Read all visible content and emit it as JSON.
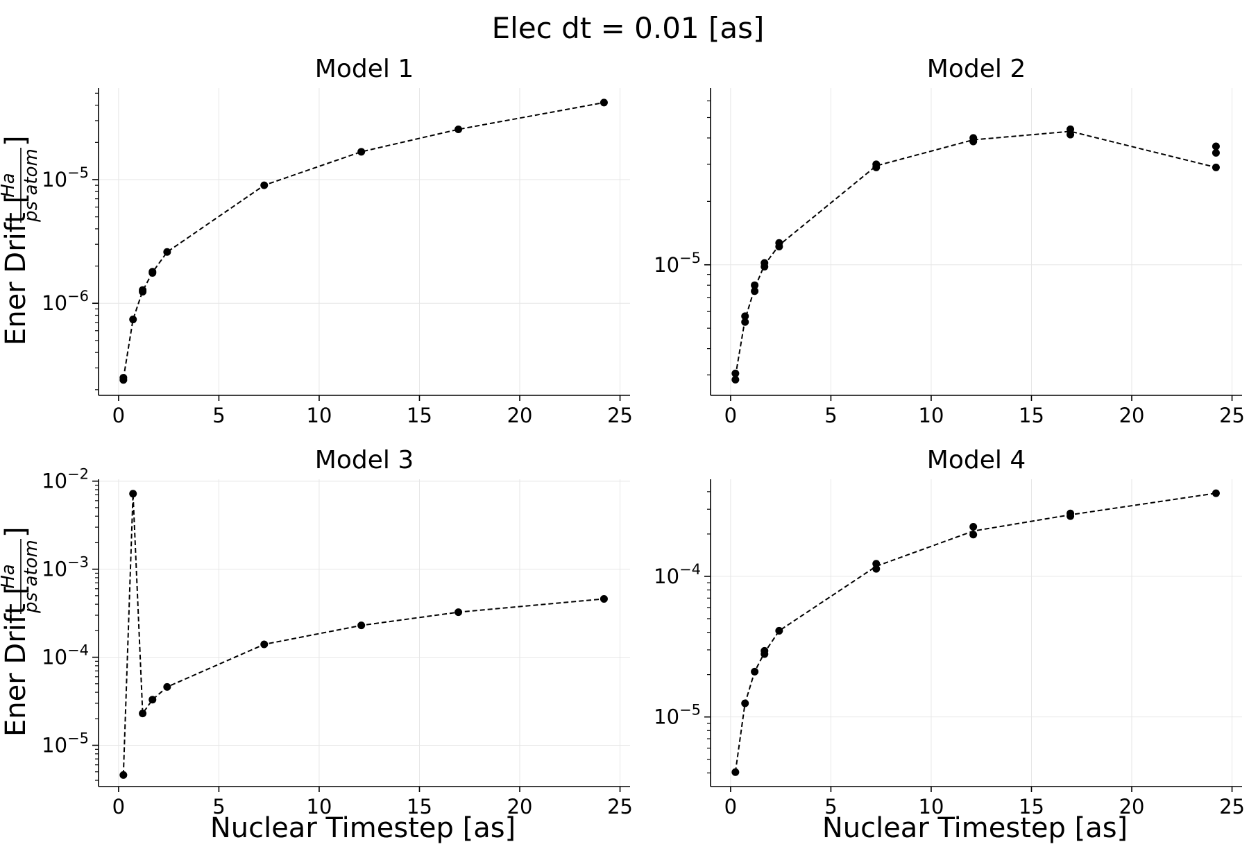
{
  "figure_title": "Elec dt = 0.01 [as]",
  "shared_xlabel": "Nuclear Timestep [as]",
  "shared_ylabel": {
    "prefix": "Ener Drift [",
    "numerator": "Ha",
    "denominator": "ps atom",
    "suffix": "]"
  },
  "colors": {
    "marker": "#000000",
    "line": "#000000",
    "grid": "#e6e6e6",
    "axis": "#000000"
  },
  "chart_data": [
    {
      "type": "line",
      "title": "Model 1",
      "xlabel": "",
      "ylabel": "Ener Drift [Ha / (ps atom)]",
      "yscale": "log",
      "xlim": [
        -1,
        25.5
      ],
      "ylim": [
        1.8e-07,
        5.5e-05
      ],
      "xticks": [
        0,
        5,
        10,
        15,
        20,
        25
      ],
      "xtick_labels": [
        "0",
        "5",
        "10",
        "15",
        "20",
        "25"
      ],
      "yticks": [
        1e-06,
        1e-05
      ],
      "ytick_labels": [
        {
          "base": "10",
          "exp": "−6"
        },
        {
          "base": "10",
          "exp": "−5"
        }
      ],
      "grid": true,
      "line_style": "dashed",
      "points": [
        {
          "x": 0.24,
          "y": 2.5e-07
        },
        {
          "x": 0.24,
          "y": 2.4e-07
        },
        {
          "x": 0.72,
          "y": 7.4e-07
        },
        {
          "x": 1.2,
          "y": 1.28e-06
        },
        {
          "x": 1.2,
          "y": 1.24e-06
        },
        {
          "x": 1.69,
          "y": 1.8e-06
        },
        {
          "x": 1.69,
          "y": 1.76e-06
        },
        {
          "x": 2.42,
          "y": 2.6e-06
        },
        {
          "x": 7.26,
          "y": 9e-06
        },
        {
          "x": 12.1,
          "y": 1.68e-05
        },
        {
          "x": 16.94,
          "y": 2.55e-05
        },
        {
          "x": 24.2,
          "y": 4.2e-05
        }
      ],
      "line_path": [
        [
          0.24,
          2.45e-07
        ],
        [
          0.72,
          7.4e-07
        ],
        [
          1.2,
          1.26e-06
        ],
        [
          1.69,
          1.78e-06
        ],
        [
          2.42,
          2.6e-06
        ],
        [
          7.26,
          9e-06
        ],
        [
          12.1,
          1.68e-05
        ],
        [
          16.94,
          2.55e-05
        ],
        [
          24.2,
          4.2e-05
        ]
      ]
    },
    {
      "type": "line",
      "title": "Model 2",
      "xlabel": "",
      "ylabel": "",
      "yscale": "log",
      "xlim": [
        -1,
        25.5
      ],
      "ylim": [
        2.4e-06,
        6.9e-05
      ],
      "xticks": [
        0,
        5,
        10,
        15,
        20,
        25
      ],
      "xtick_labels": [
        "0",
        "5",
        "10",
        "15",
        "20",
        "25"
      ],
      "yticks": [
        1e-05
      ],
      "ytick_labels": [
        {
          "base": "10",
          "exp": "−5"
        }
      ],
      "grid": true,
      "line_style": "dashed",
      "points": [
        {
          "x": 0.24,
          "y": 3.05e-06
        },
        {
          "x": 0.24,
          "y": 2.85e-06
        },
        {
          "x": 0.72,
          "y": 5.7e-06
        },
        {
          "x": 0.72,
          "y": 5.35e-06
        },
        {
          "x": 1.2,
          "y": 8e-06
        },
        {
          "x": 1.2,
          "y": 7.5e-06
        },
        {
          "x": 1.69,
          "y": 1.02e-05
        },
        {
          "x": 1.69,
          "y": 9.8e-06
        },
        {
          "x": 2.42,
          "y": 1.27e-05
        },
        {
          "x": 2.42,
          "y": 1.22e-05
        },
        {
          "x": 7.26,
          "y": 3e-05
        },
        {
          "x": 7.26,
          "y": 2.9e-05
        },
        {
          "x": 12.1,
          "y": 4e-05
        },
        {
          "x": 12.1,
          "y": 3.85e-05
        },
        {
          "x": 16.94,
          "y": 4.4e-05
        },
        {
          "x": 16.94,
          "y": 4.15e-05
        },
        {
          "x": 24.2,
          "y": 3.65e-05
        },
        {
          "x": 24.2,
          "y": 3.4e-05
        },
        {
          "x": 24.2,
          "y": 2.9e-05
        }
      ],
      "line_path": [
        [
          0.24,
          2.95e-06
        ],
        [
          0.72,
          5.5e-06
        ],
        [
          1.2,
          7.75e-06
        ],
        [
          1.69,
          1e-05
        ],
        [
          2.42,
          1.24e-05
        ],
        [
          7.26,
          2.95e-05
        ],
        [
          12.1,
          3.92e-05
        ],
        [
          16.94,
          4.3e-05
        ],
        [
          24.2,
          2.9e-05
        ]
      ]
    },
    {
      "type": "line",
      "title": "Model 3",
      "xlabel": "Nuclear Timestep [as]",
      "ylabel": "Ener Drift [Ha / (ps atom)]",
      "yscale": "log",
      "xlim": [
        -1,
        25.5
      ],
      "ylim": [
        3.4e-06,
        0.0105
      ],
      "xticks": [
        0,
        5,
        10,
        15,
        20,
        25
      ],
      "xtick_labels": [
        "0",
        "5",
        "10",
        "15",
        "20",
        "25"
      ],
      "yticks": [
        1e-05,
        0.0001,
        0.001,
        0.01
      ],
      "ytick_labels": [
        {
          "base": "10",
          "exp": "−5"
        },
        {
          "base": "10",
          "exp": "−4"
        },
        {
          "base": "10",
          "exp": "−3"
        },
        {
          "base": "10",
          "exp": "−2"
        }
      ],
      "grid": true,
      "line_style": "dashed",
      "points": [
        {
          "x": 0.24,
          "y": 4.6e-06
        },
        {
          "x": 0.72,
          "y": 0.0072
        },
        {
          "x": 1.2,
          "y": 2.3e-05
        },
        {
          "x": 1.69,
          "y": 3.3e-05
        },
        {
          "x": 2.42,
          "y": 4.6e-05
        },
        {
          "x": 7.26,
          "y": 0.00014
        },
        {
          "x": 12.1,
          "y": 0.00023
        },
        {
          "x": 16.94,
          "y": 0.000325
        },
        {
          "x": 24.2,
          "y": 0.00046
        }
      ],
      "line_path": [
        [
          0.24,
          4.6e-06
        ],
        [
          0.72,
          0.0072
        ],
        [
          1.2,
          2.3e-05
        ],
        [
          1.69,
          3.3e-05
        ],
        [
          2.42,
          4.6e-05
        ],
        [
          7.26,
          0.00014
        ],
        [
          12.1,
          0.00023
        ],
        [
          16.94,
          0.000325
        ],
        [
          24.2,
          0.00046
        ]
      ]
    },
    {
      "type": "line",
      "title": "Model 4",
      "xlabel": "Nuclear Timestep [as]",
      "ylabel": "",
      "yscale": "log",
      "xlim": [
        -1,
        25.5
      ],
      "ylim": [
        3.2e-06,
        0.00049
      ],
      "xticks": [
        0,
        5,
        10,
        15,
        20,
        25
      ],
      "xtick_labels": [
        "0",
        "5",
        "10",
        "15",
        "20",
        "25"
      ],
      "yticks": [
        1e-05,
        0.0001
      ],
      "ytick_labels": [
        {
          "base": "10",
          "exp": "−5"
        },
        {
          "base": "10",
          "exp": "−4"
        }
      ],
      "grid": true,
      "line_style": "dashed",
      "points": [
        {
          "x": 0.24,
          "y": 4.05e-06
        },
        {
          "x": 0.72,
          "y": 1.25e-05
        },
        {
          "x": 1.2,
          "y": 2.1e-05
        },
        {
          "x": 1.69,
          "y": 2.95e-05
        },
        {
          "x": 1.69,
          "y": 2.8e-05
        },
        {
          "x": 2.42,
          "y": 4.1e-05
        },
        {
          "x": 7.26,
          "y": 0.000123
        },
        {
          "x": 7.26,
          "y": 0.000113
        },
        {
          "x": 12.1,
          "y": 0.000225
        },
        {
          "x": 12.1,
          "y": 0.000198
        },
        {
          "x": 16.94,
          "y": 0.00028
        },
        {
          "x": 16.94,
          "y": 0.000268
        },
        {
          "x": 24.2,
          "y": 0.00039
        }
      ],
      "line_path": [
        [
          0.24,
          4.05e-06
        ],
        [
          0.72,
          1.25e-05
        ],
        [
          1.2,
          2.1e-05
        ],
        [
          1.69,
          2.87e-05
        ],
        [
          2.42,
          4.1e-05
        ],
        [
          7.26,
          0.000118
        ],
        [
          12.1,
          0.00021
        ],
        [
          16.94,
          0.000274
        ],
        [
          24.2,
          0.00039
        ]
      ]
    }
  ]
}
